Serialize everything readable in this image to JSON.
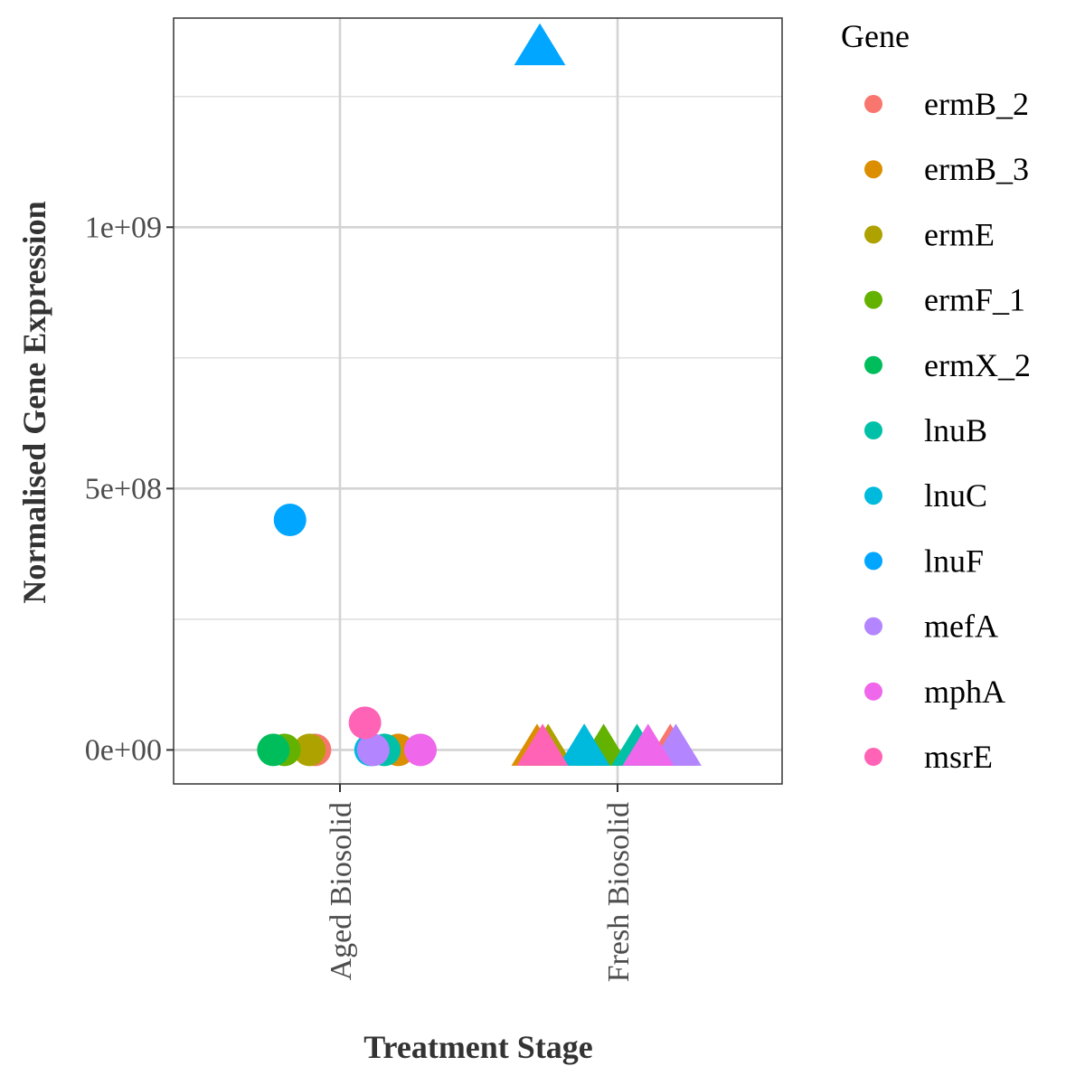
{
  "chart_data": {
    "type": "scatter",
    "xlabel": "Treatment Stage",
    "ylabel": "Normalised Gene Expression",
    "categories": [
      "Aged Biosolid",
      "Fresh Biosolid"
    ],
    "ylim": [
      -65000000,
      1400000000
    ],
    "y_ticks": [
      0,
      500000000,
      1000000000
    ],
    "y_tick_labels": [
      "0e+00",
      "5e+08",
      "1e+09"
    ],
    "grid": true,
    "legend": {
      "title": "Gene",
      "position": "right",
      "entries": [
        {
          "name": "ermB_2",
          "color": "#F8766D"
        },
        {
          "name": "ermB_3",
          "color": "#DB8E00"
        },
        {
          "name": "ermE",
          "color": "#AEA200"
        },
        {
          "name": "ermF_1",
          "color": "#64B200"
        },
        {
          "name": "ermX_2",
          "color": "#00BD5C"
        },
        {
          "name": "lnuB",
          "color": "#00C1A7"
        },
        {
          "name": "lnuC",
          "color": "#00BADE"
        },
        {
          "name": "lnuF",
          "color": "#00A6FF"
        },
        {
          "name": "mefA",
          "color": "#B385FF"
        },
        {
          "name": "mphA",
          "color": "#EF67EB"
        },
        {
          "name": "msrE",
          "color": "#FF63B6"
        }
      ]
    },
    "shapes": {
      "Aged Biosolid": "circle",
      "Fresh Biosolid": "triangle"
    },
    "points": [
      {
        "gene": "ermB_2",
        "stage": "Aged Biosolid",
        "jitter": -0.09,
        "y": 0
      },
      {
        "gene": "ermB_3",
        "stage": "Aged Biosolid",
        "jitter": 0.21,
        "y": 0
      },
      {
        "gene": "ermE",
        "stage": "Aged Biosolid",
        "jitter": -0.11,
        "y": 0
      },
      {
        "gene": "ermF_1",
        "stage": "Aged Biosolid",
        "jitter": -0.2,
        "y": 0
      },
      {
        "gene": "ermX_2",
        "stage": "Aged Biosolid",
        "jitter": -0.24,
        "y": 0
      },
      {
        "gene": "lnuB",
        "stage": "Aged Biosolid",
        "jitter": 0.16,
        "y": 0
      },
      {
        "gene": "lnuC",
        "stage": "Aged Biosolid",
        "jitter": 0.11,
        "y": 0
      },
      {
        "gene": "lnuF",
        "stage": "Aged Biosolid",
        "jitter": -0.18,
        "y": 440000000
      },
      {
        "gene": "mefA",
        "stage": "Aged Biosolid",
        "jitter": 0.12,
        "y": 0
      },
      {
        "gene": "mphA",
        "stage": "Aged Biosolid",
        "jitter": 0.29,
        "y": 0
      },
      {
        "gene": "msrE",
        "stage": "Aged Biosolid",
        "jitter": 0.09,
        "y": 52000000
      },
      {
        "gene": "ermB_2",
        "stage": "Fresh Biosolid",
        "jitter": 0.19,
        "y": 0
      },
      {
        "gene": "ermB_3",
        "stage": "Fresh Biosolid",
        "jitter": -0.29,
        "y": 0
      },
      {
        "gene": "ermE",
        "stage": "Fresh Biosolid",
        "jitter": -0.25,
        "y": 0
      },
      {
        "gene": "ermF_1",
        "stage": "Fresh Biosolid",
        "jitter": -0.05,
        "y": 0
      },
      {
        "gene": "ermX_2",
        "stage": "Fresh Biosolid",
        "jitter": -0.12,
        "y": 0
      },
      {
        "gene": "lnuB",
        "stage": "Fresh Biosolid",
        "jitter": 0.07,
        "y": 0
      },
      {
        "gene": "lnuC",
        "stage": "Fresh Biosolid",
        "jitter": -0.12,
        "y": 0
      },
      {
        "gene": "lnuF",
        "stage": "Fresh Biosolid",
        "jitter": -0.28,
        "y": 1340000000
      },
      {
        "gene": "mefA",
        "stage": "Fresh Biosolid",
        "jitter": 0.21,
        "y": 0
      },
      {
        "gene": "mphA",
        "stage": "Fresh Biosolid",
        "jitter": 0.11,
        "y": 0
      },
      {
        "gene": "msrE",
        "stage": "Fresh Biosolid",
        "jitter": -0.27,
        "y": 0
      }
    ]
  }
}
